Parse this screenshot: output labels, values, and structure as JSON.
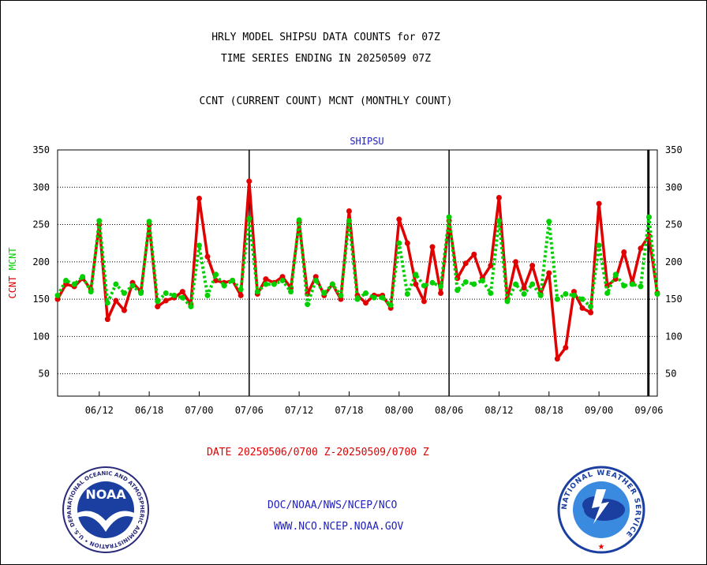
{
  "titles": {
    "line1": "HRLY MODEL SHIPSU DATA COUNTS for 07Z",
    "line2": "TIME SERIES ENDING IN 20250509 07Z",
    "line3": "CCNT (CURRENT COUNT) MCNT (MONTHLY COUNT)"
  },
  "date_range": "DATE 20250506/0700 Z-20250509/0700 Z",
  "credits": {
    "org": "DOC/NOAA/NWS/NCEP/NCO",
    "url": "WWW.NCO.NCEP.NOAA.GOV"
  },
  "logos": {
    "noaa": {
      "text": "NOAA",
      "ring_text": "NATIONAL OCEANIC AND ATMOSPHERIC ADMINISTRATION • U.S. DEPARTMENT OF COMMERCE •"
    },
    "nws": {
      "ring_text": "NATIONAL WEATHER SERVICE"
    }
  },
  "chart_data": {
    "type": "line",
    "title": "SHIPSU",
    "ylabel_left_parts": [
      {
        "text": "CCNT",
        "color": "#e00000"
      },
      {
        "text": "MCNT",
        "color": "#00d000"
      }
    ],
    "ylim": [
      20,
      350
    ],
    "yticks": [
      50,
      100,
      150,
      200,
      250,
      300,
      350
    ],
    "grid": true,
    "x_tick_labels": [
      "06/12",
      "06/18",
      "07/00",
      "07/06",
      "07/12",
      "07/18",
      "08/00",
      "08/06",
      "08/12",
      "08/18",
      "09/00",
      "09/06"
    ],
    "x_tick_positions": [
      5,
      11,
      17,
      23,
      29,
      35,
      41,
      47,
      53,
      59,
      65,
      71
    ],
    "x_range": [
      0,
      72
    ],
    "day_boundaries": [
      23,
      47,
      71
    ],
    "series": [
      {
        "name": "CCNT",
        "color": "#e00000",
        "style": "solid",
        "values": [
          150,
          170,
          167,
          178,
          163,
          250,
          123,
          148,
          135,
          172,
          160,
          250,
          140,
          148,
          152,
          160,
          143,
          285,
          207,
          175,
          172,
          175,
          155,
          308,
          157,
          177,
          172,
          180,
          165,
          253,
          157,
          180,
          155,
          170,
          150,
          268,
          155,
          145,
          155,
          155,
          138,
          257,
          225,
          170,
          147,
          220,
          158,
          255,
          178,
          198,
          210,
          178,
          195,
          286,
          150,
          200,
          165,
          195,
          157,
          185,
          70,
          85,
          160,
          138,
          132,
          278,
          168,
          177,
          213,
          172,
          218,
          235,
          158
        ]
      },
      {
        "name": "MCNT",
        "color": "#00d000",
        "style": "dotted",
        "values": [
          155,
          175,
          170,
          180,
          160,
          255,
          145,
          170,
          158,
          168,
          158,
          254,
          147,
          158,
          155,
          152,
          140,
          222,
          155,
          183,
          168,
          175,
          163,
          258,
          160,
          170,
          170,
          175,
          160,
          256,
          143,
          175,
          158,
          170,
          155,
          255,
          150,
          158,
          152,
          152,
          142,
          225,
          157,
          183,
          168,
          172,
          167,
          260,
          162,
          173,
          170,
          175,
          158,
          255,
          147,
          170,
          157,
          170,
          155,
          254,
          150,
          157,
          155,
          150,
          140,
          222,
          158,
          183,
          168,
          170,
          167,
          260,
          157
        ]
      }
    ]
  }
}
